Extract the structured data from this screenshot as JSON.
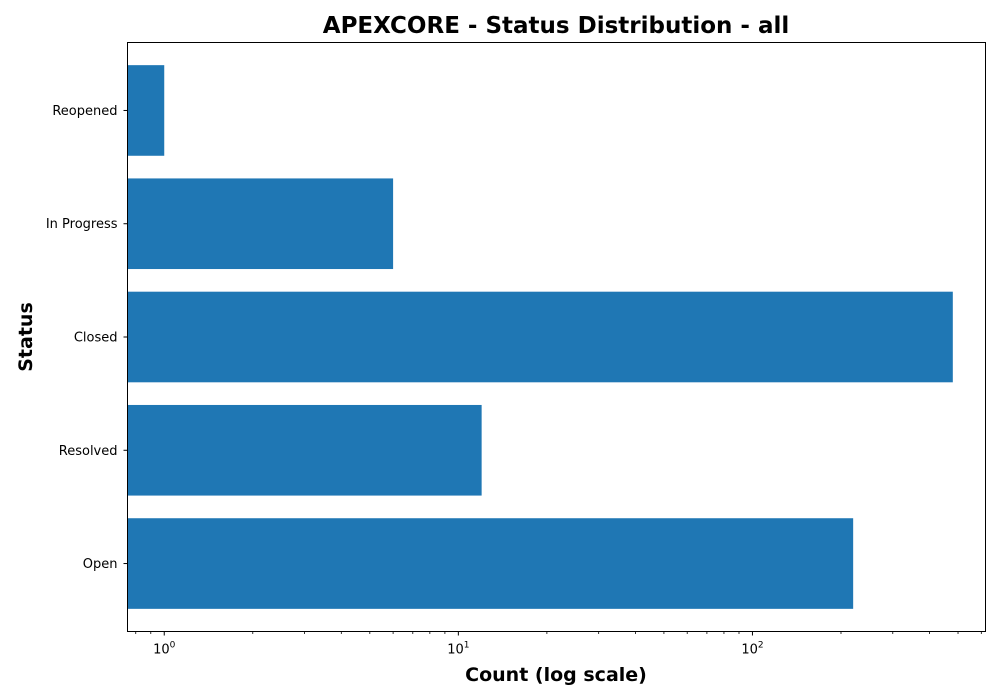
{
  "chart_data": {
    "type": "bar",
    "orientation": "horizontal",
    "title": "APEXCORE - Status Distribution - all",
    "xlabel": "Count (log scale)",
    "ylabel": "Status",
    "xscale": "log",
    "xlim": [
      0.75,
      620
    ],
    "categories": [
      "Open",
      "Resolved",
      "Closed",
      "In Progress",
      "Reopened"
    ],
    "values": [
      220,
      12,
      480,
      6,
      1
    ],
    "x_ticks": [
      {
        "base": "10",
        "exp": "0",
        "value": 1
      },
      {
        "base": "10",
        "exp": "1",
        "value": 10
      },
      {
        "base": "10",
        "exp": "2",
        "value": 100
      }
    ],
    "bar_color": "#1f77b4",
    "grid": false
  }
}
